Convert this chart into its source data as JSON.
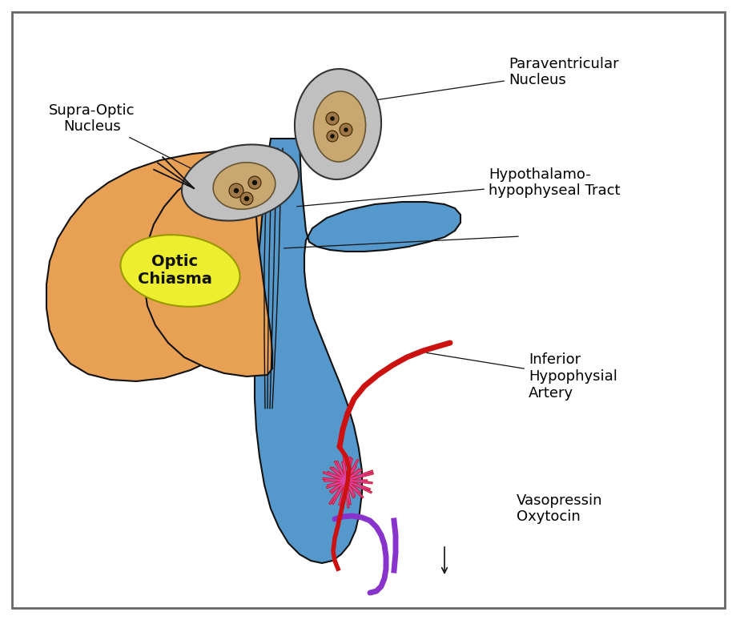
{
  "bg_color": "#ffffff",
  "border_color": "#888888",
  "labels": {
    "supra_optic": "Supra-Optic\nNucleus",
    "paraventricular": "Paraventricular\nNucleus",
    "hypothalamo": "Hypothalamo-\nhypophyseal Tract",
    "optic_chiasma": "Optic\nChiasma",
    "inferior_hypo": "Inferior\nHypophysial\nArtery",
    "vasopressin": "Vasopressin\nOxytocin"
  },
  "colors": {
    "nucleus_fill": "#c0c0c0",
    "nucleus_inner": "#c8a870",
    "blue_pituitary": "#5599cc",
    "orange_body": "#e8a055",
    "yellow_chiasma": "#eeee30",
    "red_artery": "#cc1111",
    "pink_capillary": "#dd44aa",
    "purple_vein": "#8833cc",
    "outline": "#111111"
  },
  "fontsize": 13
}
